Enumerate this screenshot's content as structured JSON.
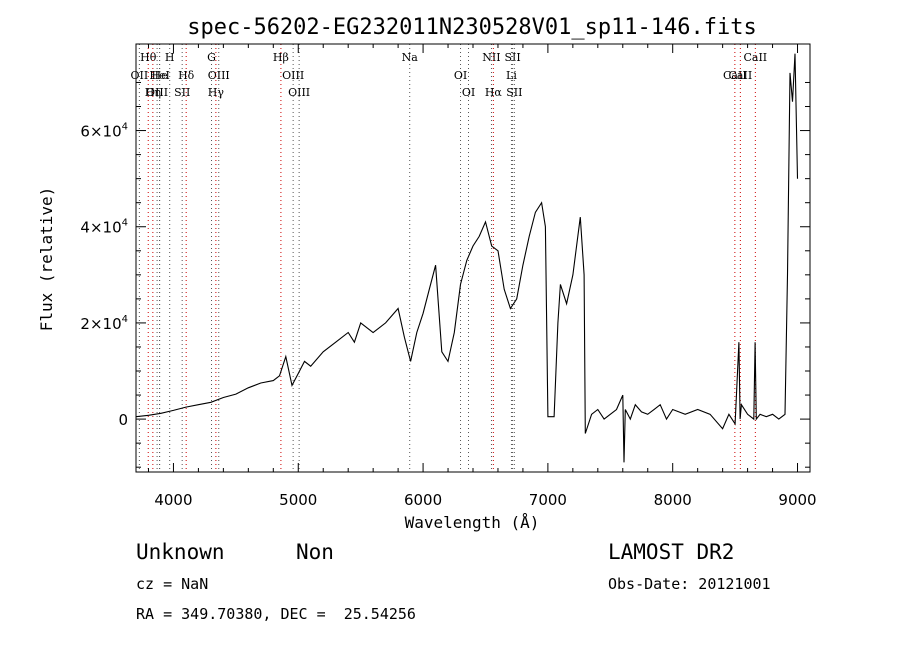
{
  "chart_data": {
    "type": "line",
    "title": "spec-56202-EG232011N230528V01_sp11-146.fits",
    "xlabel": "Wavelength (Å)",
    "ylabel": "Flux (relative)",
    "xlim": [
      3700,
      9100
    ],
    "ylim": [
      -11000,
      78000
    ],
    "xticks": [
      {
        "value": 4000,
        "label": "4000"
      },
      {
        "value": 5000,
        "label": "5000"
      },
      {
        "value": 6000,
        "label": "6000"
      },
      {
        "value": 7000,
        "label": "7000"
      },
      {
        "value": 8000,
        "label": "8000"
      },
      {
        "value": 9000,
        "label": "9000"
      }
    ],
    "yticks": [
      {
        "value": 0,
        "base": "0",
        "exp": ""
      },
      {
        "value": 20000,
        "base": "2×10",
        "exp": "4"
      },
      {
        "value": 40000,
        "base": "4×10",
        "exp": "4"
      },
      {
        "value": 60000,
        "base": "6×10",
        "exp": "4"
      }
    ],
    "grid": false,
    "series": [
      {
        "x": [
          3700,
          3800,
          3900,
          4000,
          4100,
          4200,
          4300,
          4400,
          4500,
          4600,
          4700,
          4800,
          4850,
          4900,
          4950,
          5000,
          5050,
          5100,
          5200,
          5300,
          5400,
          5450,
          5500,
          5600,
          5700,
          5800,
          5850,
          5900,
          5950,
          6000,
          6050,
          6100,
          6150,
          6200,
          6250,
          6300,
          6350,
          6400,
          6450,
          6500,
          6550,
          6600,
          6650,
          6700,
          6750,
          6800,
          6850,
          6900,
          6950,
          6980,
          7000,
          7020,
          7050,
          7080,
          7100,
          7150,
          7200,
          7240,
          7260,
          7290,
          7300,
          7350,
          7400,
          7450,
          7500,
          7550,
          7600,
          7610,
          7620,
          7640,
          7660,
          7700,
          7750,
          7800,
          7850,
          7900,
          7950,
          8000,
          8100,
          8200,
          8300,
          8400,
          8450,
          8500,
          8530,
          8540,
          8550,
          8600,
          8650,
          8660,
          8670,
          8700,
          8750,
          8800,
          8850,
          8900,
          8920,
          8940,
          8960,
          8980,
          9000
        ],
        "y": [
          500,
          800,
          1200,
          1800,
          2500,
          3000,
          3500,
          4500,
          5200,
          6500,
          7500,
          8000,
          9000,
          13000,
          7000,
          9500,
          12000,
          11000,
          14000,
          16000,
          18000,
          16000,
          20000,
          18000,
          20000,
          23000,
          17000,
          12000,
          18000,
          22000,
          27000,
          32000,
          14000,
          12000,
          18000,
          28000,
          33000,
          36000,
          38000,
          41000,
          36000,
          35000,
          27000,
          23000,
          25000,
          32000,
          38000,
          43000,
          45000,
          40000,
          500,
          500,
          500,
          20000,
          28000,
          24000,
          30000,
          38000,
          42000,
          30000,
          -3000,
          1000,
          2000,
          0,
          1000,
          2000,
          5000,
          -9000,
          2000,
          1000,
          0,
          3000,
          1500,
          1000,
          2000,
          3000,
          0,
          2000,
          1000,
          2000,
          1000,
          -2000,
          1000,
          -1000,
          16000,
          0,
          3000,
          1000,
          0,
          16000,
          0,
          1000,
          500,
          1000,
          0,
          1000,
          30000,
          72000,
          66000,
          76000,
          50000
        ]
      }
    ],
    "line_markers": [
      {
        "label": "Hθ",
        "w": 3798,
        "color": "#cc0000",
        "row": 0
      },
      {
        "label": "OII",
        "w": 3727,
        "color": "#555555",
        "row": 1
      },
      {
        "label": "OIII",
        "w": 3869,
        "color": "#555555",
        "row": 2
      },
      {
        "label": "He",
        "w": 3889,
        "color": "#555555",
        "row": 1
      },
      {
        "label": "Hη",
        "w": 3835,
        "color": "#cc0000",
        "row": 2
      },
      {
        "label": "H",
        "w": 3970,
        "color": "#555555",
        "row": 0
      },
      {
        "label": "HeI",
        "w": 3889,
        "color": "#555555",
        "row": 1
      },
      {
        "label": "SII",
        "w": 4070,
        "color": "#555555",
        "row": 2
      },
      {
        "label": "Hδ",
        "w": 4102,
        "color": "#cc0000",
        "row": 1
      },
      {
        "label": "G",
        "w": 4305,
        "color": "#555555",
        "row": 0
      },
      {
        "label": "OIII",
        "w": 4363,
        "color": "#555555",
        "row": 1
      },
      {
        "label": "Hγ",
        "w": 4340,
        "color": "#cc0000",
        "row": 2
      },
      {
        "label": "Hβ",
        "w": 4861,
        "color": "#cc0000",
        "row": 0
      },
      {
        "label": "OIII",
        "w": 4959,
        "color": "#555555",
        "row": 1
      },
      {
        "label": "OIII",
        "w": 5007,
        "color": "#555555",
        "row": 2
      },
      {
        "label": "Na",
        "w": 5893,
        "color": "#555555",
        "row": 0
      },
      {
        "label": "OI",
        "w": 6300,
        "color": "#555555",
        "row": 1
      },
      {
        "label": "OI",
        "w": 6364,
        "color": "#555555",
        "row": 2
      },
      {
        "label": "NII",
        "w": 6548,
        "color": "#555555",
        "row": 0
      },
      {
        "label": "Hα",
        "w": 6563,
        "color": "#cc0000",
        "row": 2
      },
      {
        "label": "SII",
        "w": 6717,
        "color": "#555555",
        "row": 0
      },
      {
        "label": "Li",
        "w": 6708,
        "color": "#555555",
        "row": 1
      },
      {
        "label": "SII",
        "w": 6731,
        "color": "#555555",
        "row": 2
      },
      {
        "label": "CaII",
        "w": 8498,
        "color": "#cc0000",
        "row": 1
      },
      {
        "label": "CaII",
        "w": 8542,
        "color": "#cc0000",
        "row": 1
      },
      {
        "label": "CaII",
        "w": 8662,
        "color": "#cc0000",
        "row": 0
      }
    ]
  },
  "info": {
    "class": "Unknown",
    "subclass": "Non",
    "survey": "LAMOST DR2",
    "cz": "cz = NaN",
    "obs_date": "Obs-Date: 20121001",
    "radec": "RA = 349.70380, DEC =  25.54256"
  }
}
